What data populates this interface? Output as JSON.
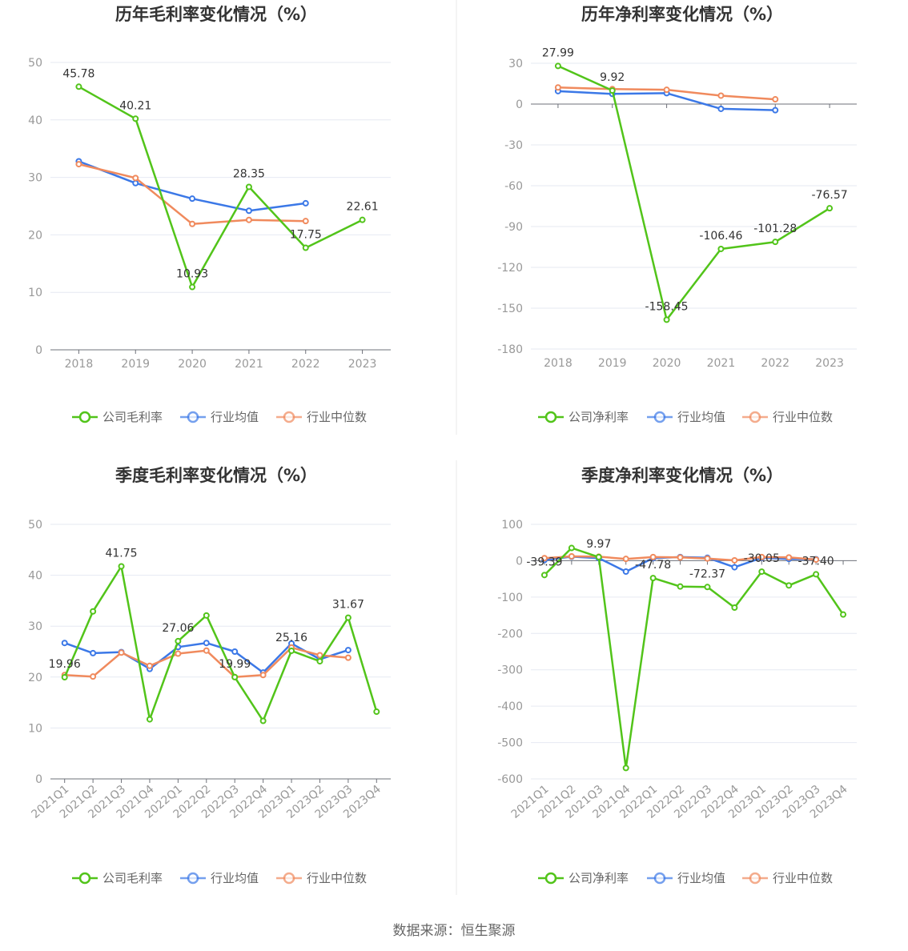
{
  "source": "数据来源：恒生聚源",
  "colors": {
    "company": "#52c41a",
    "avg": "#3b78e7",
    "median": "#f08a5d",
    "grid": "#e6e9f2",
    "axis": "#999999"
  },
  "charts": [
    {
      "chart_data": {
        "type": "line",
        "title": "历年毛利率变化情况（%）",
        "categories": [
          "2018",
          "2019",
          "2020",
          "2021",
          "2022",
          "2023"
        ],
        "ylim": [
          0,
          50
        ],
        "yticks": [
          0,
          10,
          20,
          30,
          40,
          50
        ],
        "grid": true,
        "legend": "bottom",
        "series": [
          {
            "name": "公司毛利率",
            "values": [
              45.78,
              40.21,
              10.93,
              28.35,
              17.75,
              22.61
            ],
            "labels": [
              "45.78",
              "40.21",
              "10.93",
              "28.35",
              "17.75",
              "22.61"
            ]
          },
          {
            "name": "行业均值",
            "values": [
              32.8,
              29.0,
              26.3,
              24.2,
              25.5,
              null
            ]
          },
          {
            "name": "行业中位数",
            "values": [
              32.3,
              29.9,
              21.9,
              22.6,
              22.4,
              null
            ]
          }
        ]
      }
    },
    {
      "chart_data": {
        "type": "line",
        "title": "历年净利率变化情况（%）",
        "categories": [
          "2018",
          "2019",
          "2020",
          "2021",
          "2022",
          "2023"
        ],
        "ylim": [
          -180,
          30
        ],
        "yticks": [
          30,
          0,
          -30,
          -60,
          -90,
          -120,
          -150,
          -180
        ],
        "grid": true,
        "legend": "bottom",
        "series": [
          {
            "name": "公司净利率",
            "values": [
              27.99,
              9.92,
              -158.45,
              -106.46,
              -101.28,
              -76.57
            ],
            "labels": [
              "27.99",
              "9.92",
              "-158.45",
              "-106.46",
              "-101.28",
              "-76.57"
            ]
          },
          {
            "name": "行业均值",
            "values": [
              9.5,
              7.5,
              8.0,
              -3.5,
              -4.5,
              null
            ]
          },
          {
            "name": "行业中位数",
            "values": [
              12.2,
              11.0,
              10.5,
              6.2,
              3.5,
              null
            ]
          }
        ]
      }
    },
    {
      "chart_data": {
        "type": "line",
        "title": "季度毛利率变化情况（%）",
        "categories": [
          "2021Q1",
          "2021Q2",
          "2021Q3",
          "2021Q4",
          "2022Q1",
          "2022Q2",
          "2022Q3",
          "2022Q4",
          "2023Q1",
          "2023Q2",
          "2023Q3",
          "2023Q4"
        ],
        "ylim": [
          0,
          50
        ],
        "yticks": [
          0,
          10,
          20,
          30,
          40,
          50
        ],
        "grid": true,
        "legend": "bottom",
        "series": [
          {
            "name": "公司毛利率",
            "values": [
              19.96,
              32.9,
              41.75,
              11.7,
              27.06,
              32.1,
              19.99,
              11.4,
              25.16,
              23.1,
              31.67,
              13.2
            ],
            "labels": [
              "19.96",
              "",
              "41.75",
              "",
              "27.06",
              "",
              "19.99",
              "",
              "25.16",
              "",
              "31.67",
              ""
            ]
          },
          {
            "name": "行业均值",
            "values": [
              26.7,
              24.7,
              24.9,
              21.6,
              25.9,
              26.7,
              25.0,
              20.9,
              26.6,
              23.5,
              25.3,
              null
            ]
          },
          {
            "name": "行业中位数",
            "values": [
              20.4,
              20.1,
              24.8,
              22.2,
              24.6,
              25.2,
              20.0,
              20.4,
              25.8,
              24.3,
              23.8,
              null
            ]
          }
        ]
      }
    },
    {
      "chart_data": {
        "type": "line",
        "title": "季度净利率变化情况（%）",
        "categories": [
          "2021Q1",
          "2021Q2",
          "2021Q3",
          "2021Q4",
          "2022Q1",
          "2022Q2",
          "2022Q3",
          "2022Q4",
          "2023Q1",
          "2023Q2",
          "2023Q3",
          "2023Q4"
        ],
        "ylim": [
          -600,
          100
        ],
        "yticks": [
          100,
          0,
          -100,
          -200,
          -300,
          -400,
          -500,
          -600
        ],
        "grid": true,
        "legend": "bottom",
        "series": [
          {
            "name": "公司净利率",
            "values": [
              -39.39,
              35.0,
              9.97,
              -570.0,
              -47.78,
              -71.0,
              -72.37,
              -129.0,
              -30.05,
              -68.0,
              -37.4,
              -148.0
            ],
            "labels": [
              "-39.39",
              "",
              "9.97",
              "",
              "-47.78",
              "",
              "-72.37",
              "",
              "-30.05",
              "",
              "-37.40",
              ""
            ]
          },
          {
            "name": "行业均值",
            "values": [
              2.0,
              11.0,
              7.0,
              -30.0,
              7.0,
              10.0,
              8.0,
              -18.0,
              8.0,
              5.0,
              4.0,
              null
            ]
          },
          {
            "name": "行业中位数",
            "values": [
              7.0,
              12.0,
              11.0,
              5.0,
              10.0,
              9.0,
              6.0,
              1.0,
              10.0,
              9.0,
              3.0,
              null
            ]
          }
        ]
      }
    }
  ]
}
